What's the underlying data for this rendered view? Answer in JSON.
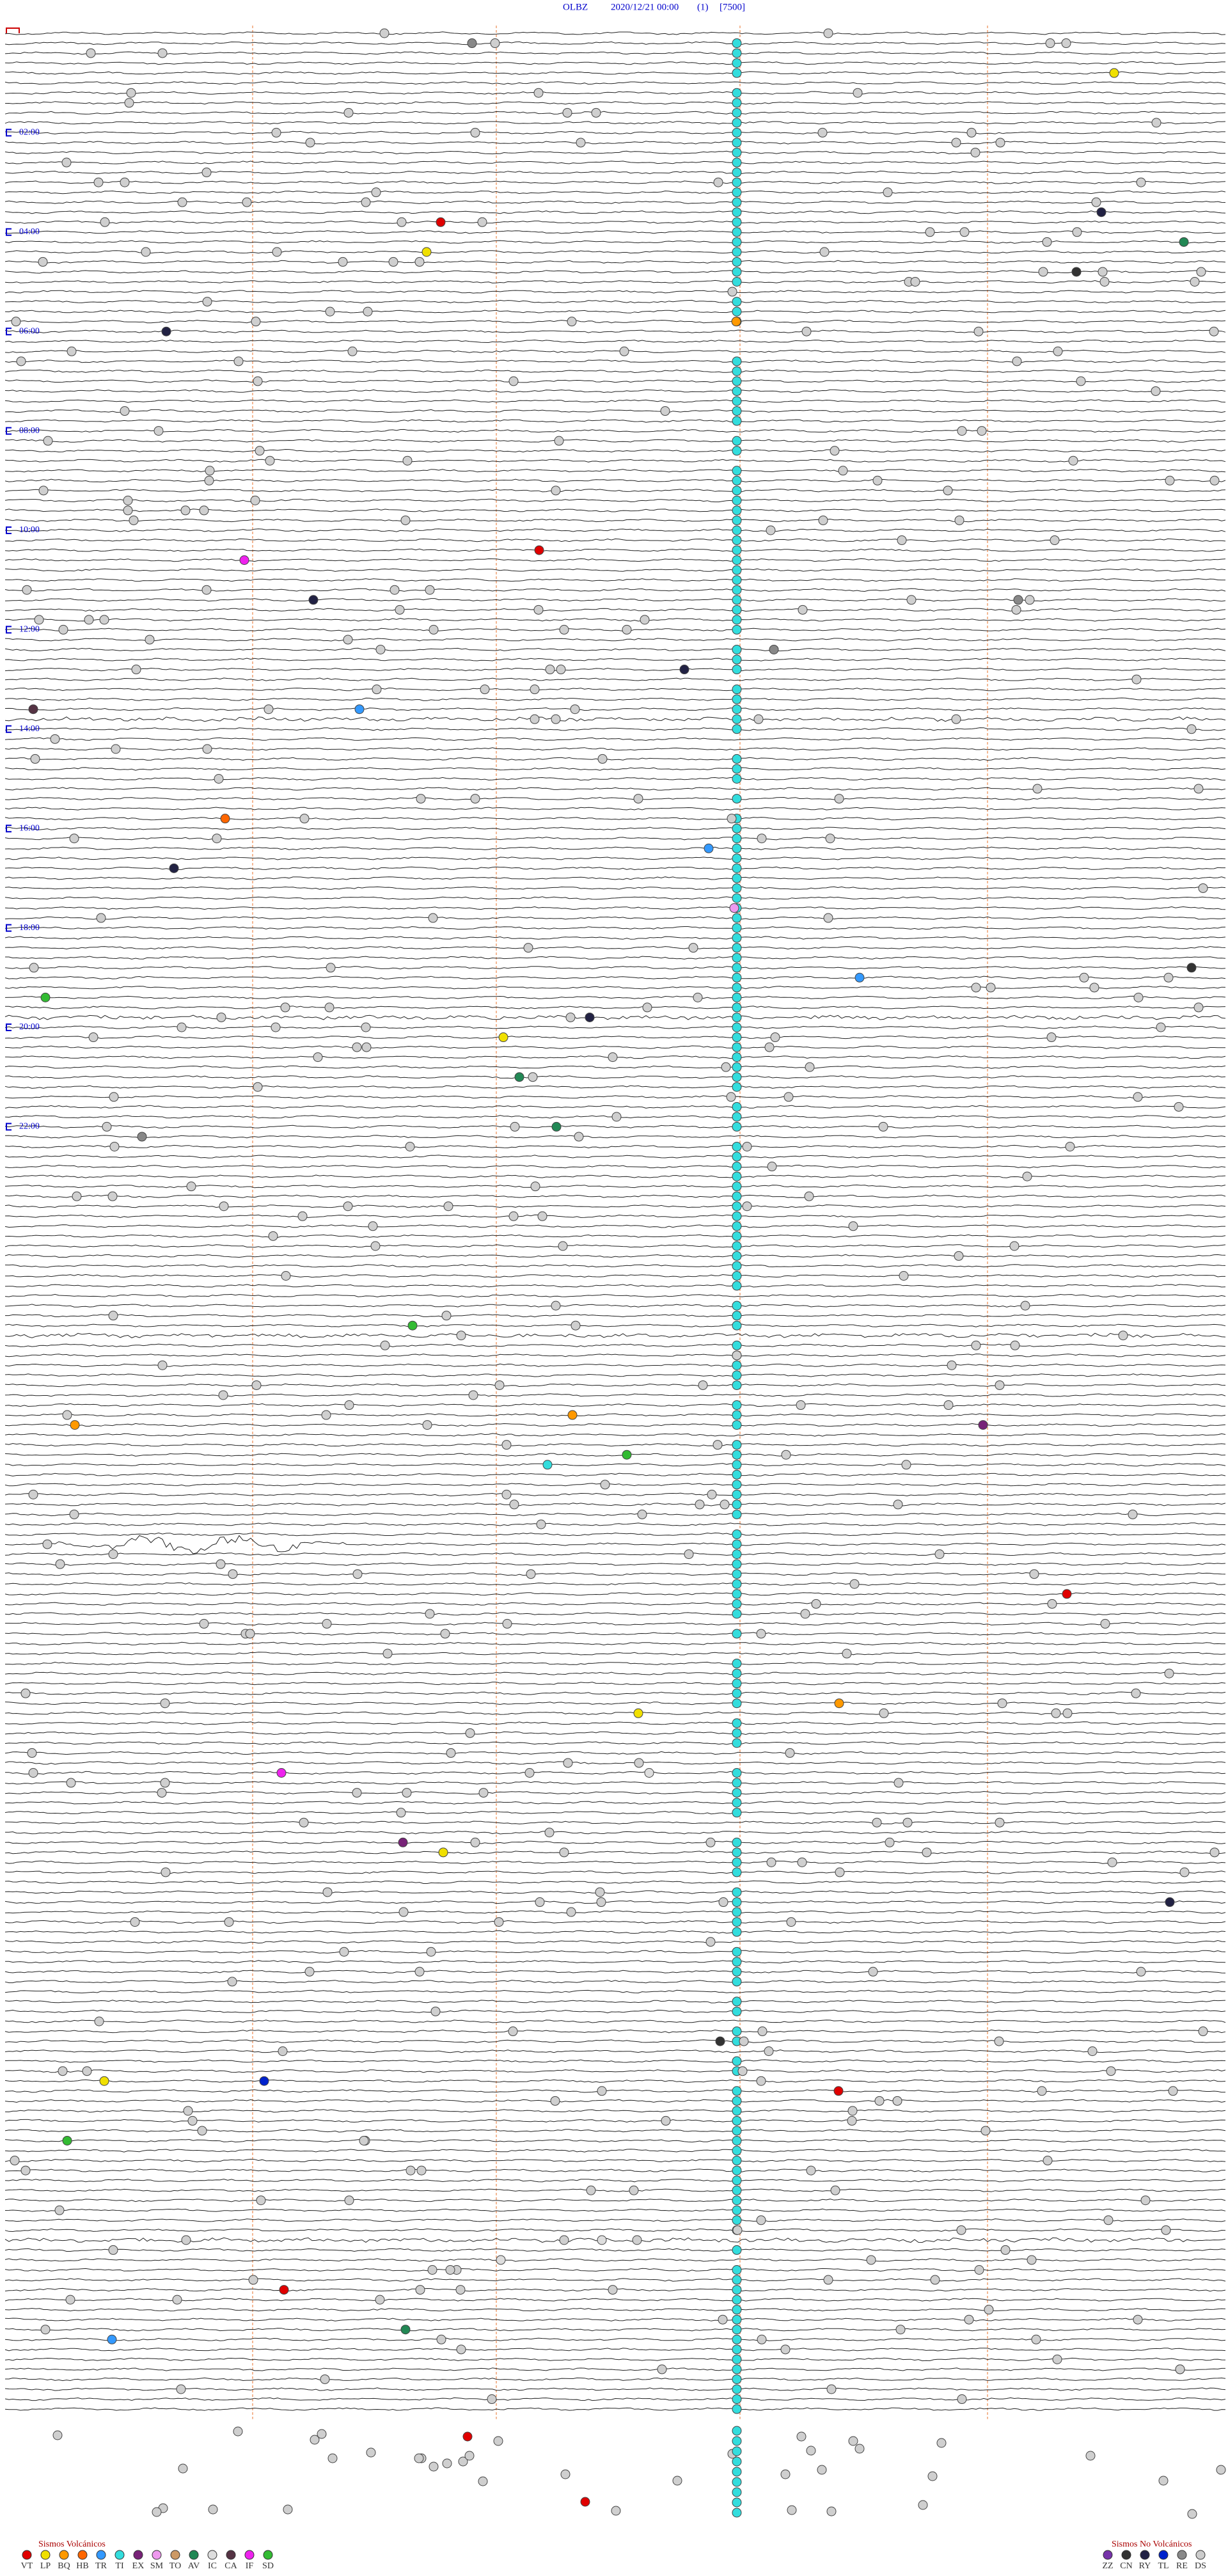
{
  "header": {
    "station": "OLBZ",
    "datetime": "2020/12/21 00:00",
    "page": "(1)",
    "scale": "[7500]"
  },
  "hour_labels": [
    "02:00",
    "04:00",
    "06:00",
    "08:00",
    "10:00",
    "12:00",
    "14:00",
    "16:00",
    "18:00",
    "20:00",
    "22:00"
  ],
  "legend_volcanic": {
    "title": "Sismos Volcánicos",
    "items": [
      {
        "code": "VT",
        "color": "#e00000"
      },
      {
        "code": "LP",
        "color": "#f0e000"
      },
      {
        "code": "BQ",
        "color": "#ff9900"
      },
      {
        "code": "HB",
        "color": "#ff6600"
      },
      {
        "code": "TR",
        "color": "#3399ff"
      },
      {
        "code": "TI",
        "color": "#33dddd"
      },
      {
        "code": "EX",
        "color": "#772277"
      },
      {
        "code": "SM",
        "color": "#ee99ee"
      },
      {
        "code": "TO",
        "color": "#cc9966"
      },
      {
        "code": "AV",
        "color": "#228855"
      },
      {
        "code": "IC",
        "color": "#dddddd"
      },
      {
        "code": "CA",
        "color": "#553344"
      },
      {
        "code": "IF",
        "color": "#ee22ee"
      },
      {
        "code": "SD",
        "color": "#33bb33"
      }
    ]
  },
  "legend_nonvolcanic": {
    "title": "Sismos No Volcánicos",
    "items": [
      {
        "code": "ZZ",
        "color": "#7733aa"
      },
      {
        "code": "CN",
        "color": "#333333"
      },
      {
        "code": "RY",
        "color": "#222244"
      },
      {
        "code": "TL",
        "color": "#0022cc"
      },
      {
        "code": "RE",
        "color": "#888888"
      },
      {
        "code": "DS",
        "color": "#cccccc"
      }
    ]
  }
}
